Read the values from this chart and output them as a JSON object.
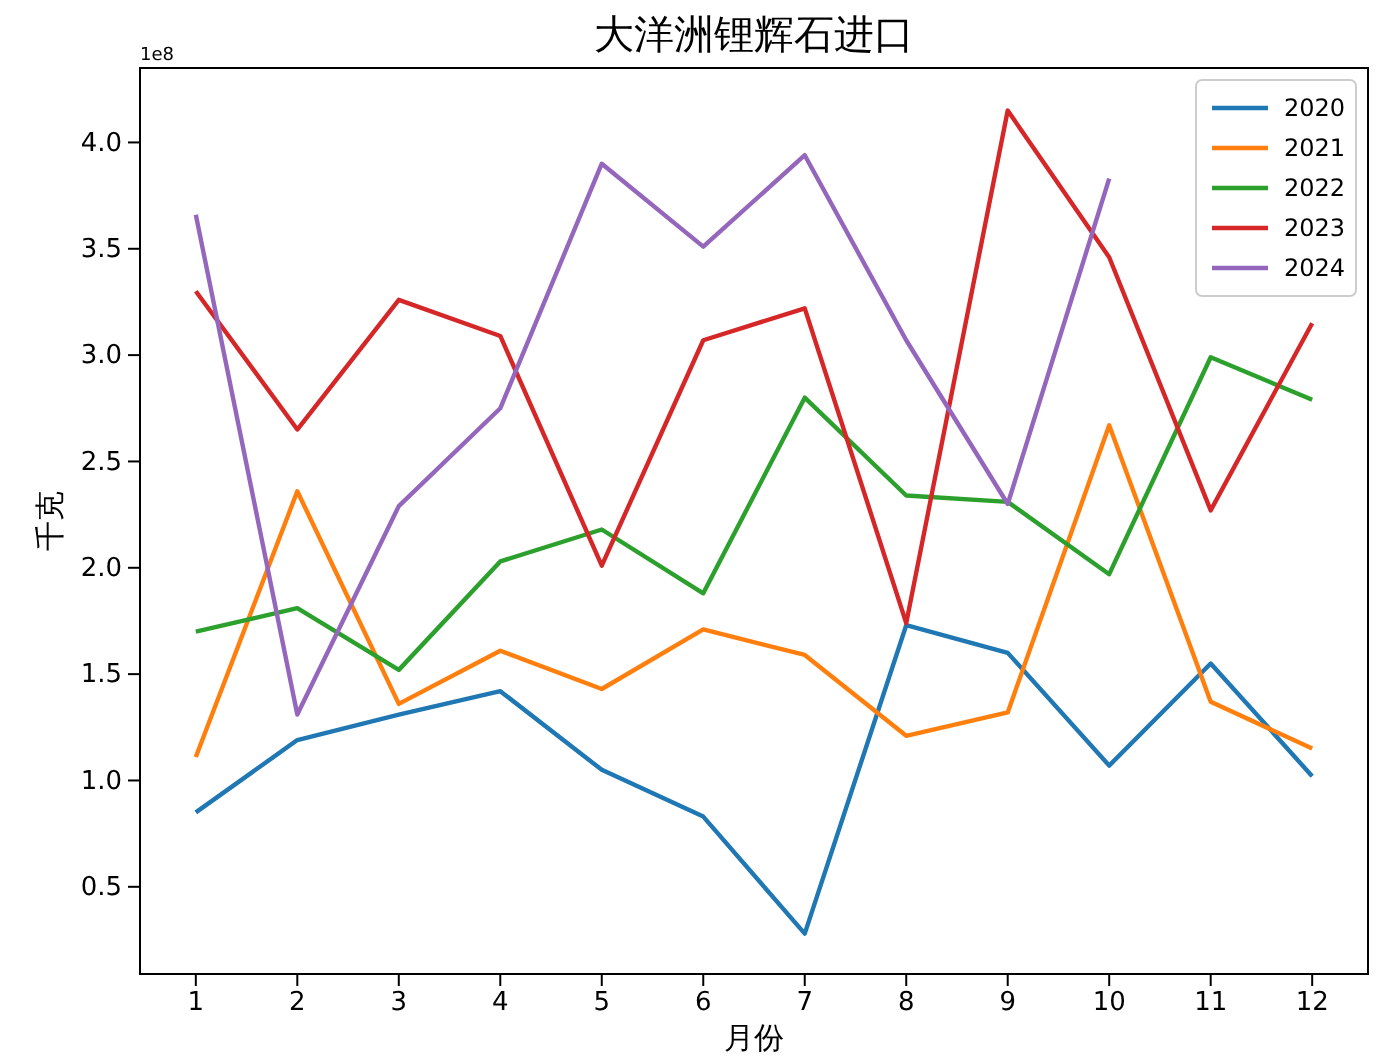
{
  "chart_data": {
    "type": "line",
    "title": "大洋洲锂辉石进口",
    "xlabel": "月份",
    "ylabel": "千克",
    "annotations": [
      "1e8"
    ],
    "x": [
      1,
      2,
      3,
      4,
      5,
      6,
      7,
      8,
      9,
      10,
      11,
      12
    ],
    "xlim": [
      0.45,
      12.55
    ],
    "xticks": [
      1,
      2,
      3,
      4,
      5,
      6,
      7,
      8,
      9,
      10,
      11,
      12
    ],
    "ylim": [
      0.09,
      4.35
    ],
    "yticks": [
      {
        "value": 0.5,
        "label": "0.5"
      },
      {
        "value": 1,
        "label": "1.0"
      },
      {
        "value": 1.5,
        "label": "1.5"
      },
      {
        "value": 2,
        "label": "2.0"
      },
      {
        "value": 2.5,
        "label": "2.5"
      },
      {
        "value": 3,
        "label": "3.0"
      },
      {
        "value": 3.5,
        "label": "3.5"
      },
      {
        "value": 4,
        "label": "4.0"
      }
    ],
    "legend": "top right",
    "grid": false,
    "marker": "none",
    "line_style": "solid",
    "series": [
      {
        "name": "2020",
        "color": "#1f77b4",
        "values": [
          0.85,
          1.19,
          1.31,
          1.42,
          1.05,
          0.83,
          0.28,
          1.73,
          1.6,
          1.07,
          1.55,
          1.02
        ]
      },
      {
        "name": "2021",
        "color": "#ff7f0e",
        "values": [
          1.11,
          2.36,
          1.36,
          1.61,
          1.43,
          1.71,
          1.59,
          1.21,
          1.32,
          2.67,
          1.37,
          1.15
        ]
      },
      {
        "name": "2022",
        "color": "#2ca02c",
        "values": [
          1.7,
          1.81,
          1.52,
          2.03,
          2.18,
          1.88,
          2.8,
          2.34,
          2.31,
          1.97,
          2.99,
          2.79
        ]
      },
      {
        "name": "2023",
        "color": "#d62728",
        "values": [
          3.3,
          2.65,
          3.26,
          3.09,
          2.01,
          3.07,
          3.22,
          1.74,
          4.15,
          3.46,
          2.27,
          3.15
        ]
      },
      {
        "name": "2024",
        "color": "#9467bd",
        "values": [
          3.66,
          1.31,
          2.29,
          2.75,
          3.9,
          3.51,
          3.94,
          3.07,
          2.3,
          3.83,
          null,
          null
        ]
      }
    ]
  }
}
